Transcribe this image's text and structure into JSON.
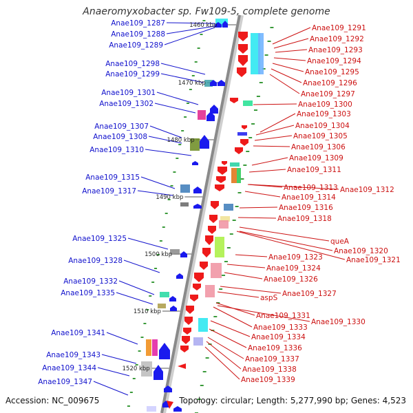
{
  "title": "Anaeromyxobacter sp. Fw109-5, complete genome",
  "accession": "Accession: NC_009675",
  "topology_summary": "Topology: circular; Length: 5,277,990 bp; Genes: 4,523",
  "colors": {
    "left_label": "#1010cc",
    "right_label": "#cc1010",
    "backbone": "#888888",
    "tick": "#3a9a3a",
    "left_gene": "#1a1aee",
    "right_gene": "#ee1a1a"
  },
  "kbp_markers": [
    {
      "label": "1460 kbp"
    },
    {
      "label": "1470 kbp"
    },
    {
      "label": "1480 kbp"
    },
    {
      "label": "1490 kbp"
    },
    {
      "label": "1500 kbp"
    },
    {
      "label": "1510 kbp"
    },
    {
      "label": "1520 kbp"
    }
  ],
  "left_genes": [
    {
      "label": "Anae109_1287"
    },
    {
      "label": "Anae109_1288"
    },
    {
      "label": "Anae109_1289"
    },
    {
      "label": "Anae109_1298"
    },
    {
      "label": "Anae109_1299"
    },
    {
      "label": "Anae109_1301"
    },
    {
      "label": "Anae109_1302"
    },
    {
      "label": "Anae109_1307"
    },
    {
      "label": "Anae109_1308"
    },
    {
      "label": "Anae109_1310"
    },
    {
      "label": "Anae109_1315"
    },
    {
      "label": "Anae109_1317"
    },
    {
      "label": "Anae109_1325"
    },
    {
      "label": "Anae109_1328"
    },
    {
      "label": "Anae109_1332"
    },
    {
      "label": "Anae109_1335"
    },
    {
      "label": "Anae109_1341"
    },
    {
      "label": "Anae109_1343"
    },
    {
      "label": "Anae109_1344"
    },
    {
      "label": "Anae109_1347"
    }
  ],
  "right_genes": [
    {
      "label": "Anae109_1291"
    },
    {
      "label": "Anae109_1292"
    },
    {
      "label": "Anae109_1293"
    },
    {
      "label": "Anae109_1294"
    },
    {
      "label": "Anae109_1295"
    },
    {
      "label": "Anae109_1296"
    },
    {
      "label": "Anae109_1297"
    },
    {
      "label": "Anae109_1300"
    },
    {
      "label": "Anae109_1303"
    },
    {
      "label": "Anae109_1304"
    },
    {
      "label": "Anae109_1305"
    },
    {
      "label": "Anae109_1306"
    },
    {
      "label": "Anae109_1309"
    },
    {
      "label": "Anae109_1311"
    },
    {
      "label": "Anae109_1313"
    },
    {
      "label": "Anae109_1312"
    },
    {
      "label": "Anae109_1314"
    },
    {
      "label": "Anae109_1316"
    },
    {
      "label": "Anae109_1318"
    },
    {
      "label": "queA"
    },
    {
      "label": "Anae109_1320"
    },
    {
      "label": "Anae109_1323"
    },
    {
      "label": "Anae109_1321"
    },
    {
      "label": "Anae109_1324"
    },
    {
      "label": "Anae109_1326"
    },
    {
      "label": "Anae109_1327"
    },
    {
      "label": "aspS"
    },
    {
      "label": "Anae109_1331"
    },
    {
      "label": "Anae109_1330"
    },
    {
      "label": "Anae109_1333"
    },
    {
      "label": "Anae109_1334"
    },
    {
      "label": "Anae109_1336"
    },
    {
      "label": "Anae109_1337"
    },
    {
      "label": "Anae109_1338"
    },
    {
      "label": "Anae109_1339"
    }
  ]
}
